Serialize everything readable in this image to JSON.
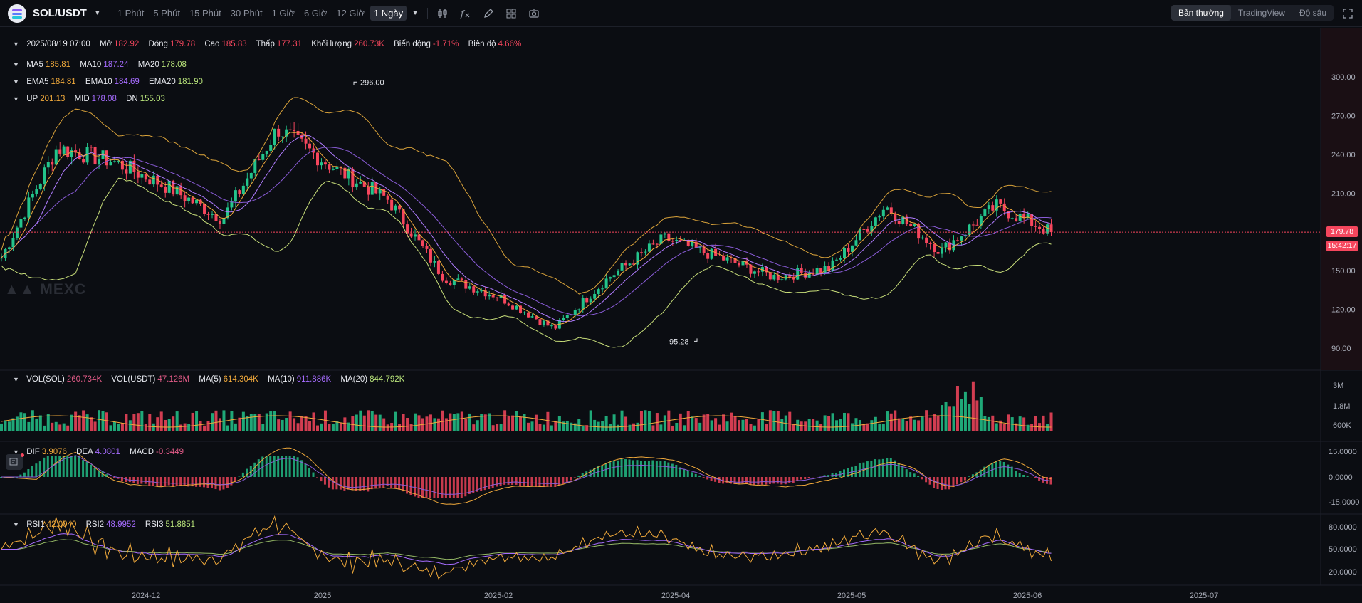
{
  "header": {
    "symbol": "SOL/USDT",
    "timeframes": [
      "1 Phút",
      "5 Phút",
      "15 Phút",
      "30 Phút",
      "1 Giờ",
      "6 Giờ",
      "12 Giờ",
      "1 Ngày"
    ],
    "active_timeframe": "1 Ngày",
    "views": [
      "Bản thường",
      "TradingView",
      "Độ sâu"
    ],
    "active_view": "Bản thường",
    "icons": [
      "candle-type-icon",
      "indicator-icon",
      "draw-icon",
      "layout-icon",
      "camera-icon",
      "fullscreen-icon"
    ]
  },
  "ohlc": {
    "date": "2025/08/19 07:00",
    "open_label": "Mở",
    "open": "182.92",
    "close_label": "Đóng",
    "close": "179.78",
    "high_label": "Cao",
    "high": "185.83",
    "low_label": "Thấp",
    "low": "177.31",
    "vol_label": "Khối lượng",
    "vol": "260.73K",
    "change_label": "Biến động",
    "change": "-1.71%",
    "amp_label": "Biên độ",
    "amp": "4.66%"
  },
  "ma": {
    "ma5_label": "MA5",
    "ma5": "185.81",
    "ma10_label": "MA10",
    "ma10": "187.24",
    "ma20_label": "MA20",
    "ma20": "178.08"
  },
  "ema": {
    "ema5_label": "EMA5",
    "ema5": "184.81",
    "ema10_label": "EMA10",
    "ema10": "184.69",
    "ema20_label": "EMA20",
    "ema20": "181.90"
  },
  "boll": {
    "up_label": "UP",
    "up": "201.13",
    "mid_label": "MID",
    "mid": "178.08",
    "dn_label": "DN",
    "dn": "155.03"
  },
  "volume": {
    "vol_sol_label": "VOL(SOL)",
    "vol_sol": "260.734K",
    "vol_usdt_label": "VOL(USDT)",
    "vol_usdt": "47.126M",
    "ma5_label": "MA(5)",
    "ma5": "614.304K",
    "ma10_label": "MA(10)",
    "ma10": "911.886K",
    "ma20_label": "MA(20)",
    "ma20": "844.792K",
    "axis": [
      "3M",
      "1.8M",
      "600K"
    ]
  },
  "macd": {
    "dif_label": "DIF",
    "dif": "3.9076",
    "dea_label": "DEA",
    "dea": "4.0801",
    "macd_label": "MACD",
    "macd": "-0.3449",
    "axis": [
      "15.0000",
      "0.0000",
      "-15.0000"
    ]
  },
  "rsi": {
    "rsi1_label": "RSI1",
    "rsi1": "42.0040",
    "rsi2_label": "RSI2",
    "rsi2": "48.9952",
    "rsi3_label": "RSI3",
    "rsi3": "51.8851",
    "axis": [
      "80.0000",
      "50.0000",
      "20.0000"
    ]
  },
  "price_axis": [
    "300.00",
    "270.00",
    "240.00",
    "210.00",
    "180.00",
    "150.00",
    "120.00",
    "90.00"
  ],
  "last_price": "179.78",
  "countdown": "15:42:17",
  "high_marker": "296.00",
  "low_marker": "95.28",
  "time_axis": [
    "2024-12",
    "2025",
    "2025-02",
    "2025-04",
    "2025-05",
    "2025-06",
    "2025-07"
  ],
  "watermark": "MEXC",
  "colors": {
    "up": "#23c48b",
    "down": "#f6465d",
    "ma5": "#f0a93b",
    "ma10": "#a66cff",
    "ma20": "#b8e37a",
    "bg": "#0b0d12"
  },
  "chart_data": {
    "type": "candlestick",
    "ylim": [
      80,
      320
    ],
    "price_anchors": [
      {
        "x": "2024-11",
        "y": 160
      },
      {
        "x": "2024-11-20",
        "y": 245
      },
      {
        "x": "2024-12",
        "y": 235
      },
      {
        "x": "2024-12-15",
        "y": 215
      },
      {
        "x": "2024-12-31",
        "y": 190
      },
      {
        "x": "2025-01-19",
        "y": 260
      },
      {
        "x": "2025-01-31",
        "y": 230
      },
      {
        "x": "2025-02-15",
        "y": 205
      },
      {
        "x": "2025-03-01",
        "y": 145
      },
      {
        "x": "2025-03-20",
        "y": 130
      },
      {
        "x": "2025-04-07",
        "y": 105
      },
      {
        "x": "2025-04-25",
        "y": 145
      },
      {
        "x": "2025-05-10",
        "y": 175
      },
      {
        "x": "2025-05-25",
        "y": 160
      },
      {
        "x": "2025-06-10",
        "y": 145
      },
      {
        "x": "2025-06-30",
        "y": 152
      },
      {
        "x": "2025-07-21",
        "y": 200
      },
      {
        "x": "2025-08-01",
        "y": 165
      },
      {
        "x": "2025-08-14",
        "y": 200
      },
      {
        "x": "2025-08-19",
        "y": 179.78
      }
    ]
  }
}
